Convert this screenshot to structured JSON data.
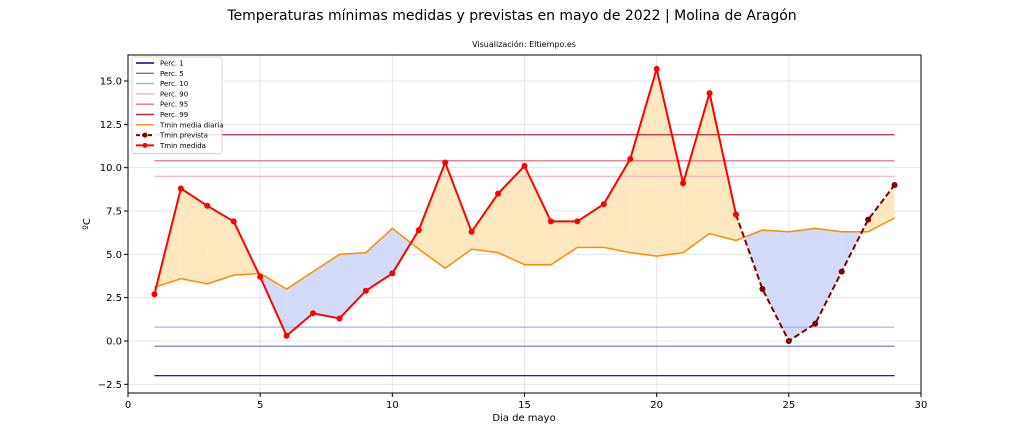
{
  "chart_data": {
    "type": "line",
    "title": "Temperaturas mínimas medidas y previstas en mayo de 2022 | Molina de Aragón",
    "subtitle": "Visualización: Eltiempo.es",
    "xlabel": "Dia de mayo",
    "ylabel": "ºC",
    "xlim": [
      0,
      30
    ],
    "ylim": [
      -3,
      16.5
    ],
    "x_ticks": [
      0,
      5,
      10,
      15,
      20,
      25,
      30
    ],
    "y_ticks": [
      -2.5,
      0.0,
      2.5,
      5.0,
      7.5,
      10.0,
      12.5,
      15.0
    ],
    "y_tick_labels": [
      "−2.5",
      "0.0",
      "2.5",
      "5.0",
      "7.5",
      "10.0",
      "12.5",
      "15.0"
    ],
    "grid": true,
    "legend_position": "top-left",
    "percentiles": [
      {
        "name": "Perc. 1",
        "value": -2.0,
        "color": "#00008b"
      },
      {
        "name": "Perc. 5",
        "value": -0.3,
        "color": "#6a73c8"
      },
      {
        "name": "Perc. 10",
        "value": 0.8,
        "color": "#aab0ec"
      },
      {
        "name": "Perc. 90",
        "value": 9.5,
        "color": "#f4b2bc"
      },
      {
        "name": "Perc. 95",
        "value": 10.4,
        "color": "#e87386"
      },
      {
        "name": "Perc. 99",
        "value": 11.9,
        "color": "#c0283c"
      }
    ],
    "percentile_x_range": [
      1,
      29
    ],
    "media_diaria": {
      "name": "Tmin media diaria",
      "color": "#ff8c00",
      "x": [
        1,
        2,
        3,
        4,
        5,
        6,
        7,
        8,
        9,
        10,
        11,
        12,
        13,
        14,
        15,
        16,
        17,
        18,
        19,
        20,
        21,
        22,
        23,
        24,
        25,
        26,
        27,
        28,
        29
      ],
      "y": [
        3.1,
        3.6,
        3.3,
        3.8,
        3.9,
        3.0,
        4.0,
        5.0,
        5.1,
        6.5,
        5.3,
        4.2,
        5.3,
        5.1,
        4.4,
        4.4,
        5.4,
        5.4,
        5.1,
        4.9,
        5.1,
        6.2,
        5.8,
        6.4,
        6.3,
        6.5,
        6.3,
        6.3,
        7.1
      ]
    },
    "medida": {
      "name": "Tmin medida",
      "color": "#ff0000",
      "x": [
        1,
        2,
        3,
        4,
        5,
        6,
        7,
        8,
        9,
        10,
        11,
        12,
        13,
        14,
        15,
        16,
        17,
        18,
        19,
        20,
        21,
        22,
        23
      ],
      "y": [
        2.7,
        8.8,
        7.8,
        6.9,
        3.7,
        0.3,
        1.6,
        1.3,
        2.9,
        3.9,
        6.4,
        10.3,
        6.3,
        8.5,
        10.1,
        6.9,
        6.9,
        7.9,
        10.5,
        15.7,
        9.1,
        14.3,
        7.3
      ]
    },
    "prevista": {
      "name": "Tmin prevista",
      "color": "#800000",
      "x": [
        23,
        24,
        25,
        26,
        27,
        28,
        29
      ],
      "y": [
        7.3,
        3.0,
        0.0,
        1.0,
        4.0,
        7.0,
        9.0
      ]
    },
    "fill_above_color": "#ffe8c0",
    "fill_below_color": "#d2daf5"
  }
}
